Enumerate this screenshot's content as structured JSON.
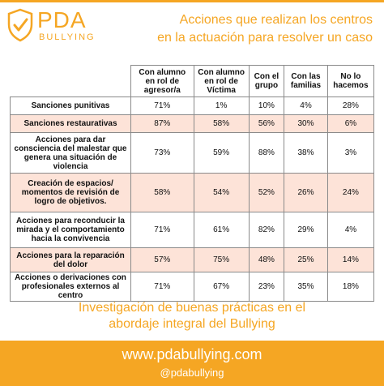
{
  "brand": {
    "name": "PDA",
    "tagline": "BULLYING",
    "color": "#f5a623",
    "icon": "shield-check-icon"
  },
  "header": {
    "title_line1": "Acciones que realizan los centros",
    "title_line2": "en la actuación para resolver un caso"
  },
  "table": {
    "columns": [
      "Con alumno en rol de agresor/a",
      "Con alumno en rol de Víctima",
      "Con el grupo",
      "Con las familias",
      "No lo hacemos"
    ],
    "rows": [
      {
        "label": "Sanciones punitivas",
        "values": [
          "71%",
          "1%",
          "10%",
          "4%",
          "28%"
        ]
      },
      {
        "label": "Sanciones restaurativas",
        "values": [
          "87%",
          "58%",
          "56%",
          "30%",
          "6%"
        ]
      },
      {
        "label": "Acciones para dar consciencia del malestar que genera una situación de violencia",
        "values": [
          "73%",
          "59%",
          "88%",
          "38%",
          "3%"
        ]
      },
      {
        "label": "Creación de espacios/ momentos de revisión de logro de objetivos.",
        "values": [
          "58%",
          "54%",
          "52%",
          "26%",
          "24%"
        ]
      },
      {
        "label": "Acciones para reconducir la mirada y el comportamiento hacia la convivencia",
        "values": [
          "71%",
          "61%",
          "82%",
          "29%",
          "4%"
        ]
      },
      {
        "label": "Acciones para la reparación del dolor",
        "values": [
          "57%",
          "75%",
          "48%",
          "25%",
          "14%"
        ]
      },
      {
        "label": "Acciones o derivaciones con profesionales externos al centro",
        "values": [
          "71%",
          "67%",
          "23%",
          "35%",
          "18%"
        ]
      }
    ],
    "highlight_color": "#fde3d8"
  },
  "subtitle": {
    "line1": "Investigación de buenas prácticas en el",
    "line2": "abordaje integral del Bullying"
  },
  "footer": {
    "url": "www.pdabullying.com",
    "handle": "@pdabullying"
  }
}
